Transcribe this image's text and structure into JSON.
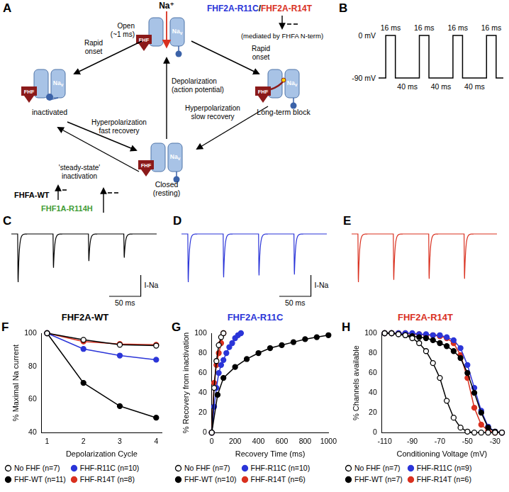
{
  "panels": {
    "A": {
      "letter": "A",
      "ion": "Na⁺",
      "channel_label": "Na",
      "channel_subscript": "v",
      "fhf_label": "FHF",
      "states": {
        "open": [
          "Open",
          "(~1 ms)"
        ],
        "inactivated": "inactivated",
        "long_term": "Long-term block",
        "closed": [
          "Closed",
          "(resting)"
        ]
      },
      "transitions": {
        "rapid_onset": [
          "Rapid",
          "onset"
        ],
        "fast_recovery": [
          "Hyperpolarization",
          "fast recovery"
        ],
        "slow_recovery": [
          "Hyperpolarization",
          "slow recovery"
        ],
        "depolarization": [
          "Depolarization",
          "(action potential)"
        ],
        "steady_state": [
          "'steady-state'",
          "inactivation"
        ]
      },
      "modulators": {
        "mutants": [
          {
            "text": "FHF2A-R11C",
            "color": "#2b35d8"
          },
          {
            "text": "FHF2A-R14T",
            "color": "#d9301f"
          }
        ],
        "separator": "/",
        "mutant_note": "(mediated by FHFA N-term)",
        "wt": {
          "text": "FHFA-WT",
          "color": "#000000"
        },
        "r114h": {
          "text": "FHF1A-R114H",
          "color": "#3f9c35"
        }
      }
    },
    "B": {
      "letter": "B",
      "levels": [
        {
          "value": 0,
          "label": "0 mV"
        },
        {
          "value": -90,
          "label": "-90 mV"
        }
      ],
      "steps": [
        {
          "level": 0,
          "duration": {
            "value": 16,
            "label": "16 ms"
          }
        },
        {
          "level": -90,
          "duration": {
            "value": 40,
            "label": "40 ms"
          }
        },
        {
          "level": 0,
          "duration": {
            "value": 16,
            "label": "16 ms"
          }
        },
        {
          "level": -90,
          "duration": {
            "value": 40,
            "label": "40 ms"
          }
        },
        {
          "level": 0,
          "duration": {
            "value": 16,
            "label": "16 ms"
          }
        },
        {
          "level": -90,
          "duration": {
            "value": 40,
            "label": "40 ms"
          }
        },
        {
          "level": 0,
          "duration": {
            "value": 16,
            "label": "16 ms"
          }
        }
      ]
    },
    "traces": [
      {
        "letter": "C",
        "label": "FHF2A-WT",
        "color": "#000000",
        "relative_peaks": [
          1.0,
          0.7,
          0.56,
          0.49
        ],
        "scale_bar": {
          "time": {
            "value": 50,
            "label": "50 ms"
          },
          "current_label": "I-Na"
        }
      },
      {
        "letter": "D",
        "label": "FHF2A-R11C",
        "color": "#2b35d8",
        "relative_peaks": [
          1.0,
          0.9,
          0.86,
          0.84
        ],
        "scale_bar": {
          "time": {
            "value": 50,
            "label": "50 ms"
          },
          "current_label": "I-Na"
        }
      },
      {
        "letter": "E",
        "label": "FHF2A-R14T",
        "color": "#d9301f",
        "relative_peaks": [
          1.0,
          0.95,
          0.93,
          0.93
        ]
      }
    ]
  },
  "chart_data": [
    {
      "panel": "F",
      "type": "line",
      "x_label": "Depolarization Cycle",
      "y_label": "% Maximal Na current",
      "x": [
        1,
        2,
        3,
        4
      ],
      "xlim": [
        0.85,
        4.15
      ],
      "xticks": [
        1,
        2,
        3,
        4
      ],
      "ylim": [
        40,
        100
      ],
      "yticks": [
        40,
        60,
        80,
        100
      ],
      "grid": false,
      "legend": "bottom",
      "series": [
        {
          "name": "No FHF (n=7)",
          "color": "#000000",
          "marker": "open_circle",
          "values": [
            100,
            96,
            93,
            92.5
          ]
        },
        {
          "name": "FHF-WT (n=11)",
          "color": "#000000",
          "marker": "circle",
          "values": [
            100,
            70,
            56,
            49
          ]
        },
        {
          "name": "FHF-R11C (n=10)",
          "color": "#2b35d8",
          "marker": "circle",
          "values": [
            100,
            90.5,
            86.5,
            84
          ]
        },
        {
          "name": "FHF-R14T (n=8)",
          "color": "#d9301f",
          "marker": "circle",
          "values": [
            100,
            95,
            93.5,
            93
          ]
        }
      ]
    },
    {
      "panel": "G",
      "type": "line",
      "x_label": "Recovery Time (ms)",
      "y_label": "% Recovery from inactivation",
      "xlim": [
        0,
        1000
      ],
      "xticks": [
        0,
        200,
        400,
        600,
        800,
        1000
      ],
      "ylim": [
        0,
        100
      ],
      "yticks": [
        0,
        20,
        40,
        60,
        80,
        100
      ],
      "grid": false,
      "legend": "bottom",
      "series": [
        {
          "name": "No FHF (n=7)",
          "color": "#000000",
          "marker": "open_circle",
          "x": [
            0,
            20,
            40,
            60,
            80,
            100
          ],
          "values": [
            0,
            45,
            72,
            88,
            96,
            100
          ]
        },
        {
          "name": "FHF-WT (n=10)",
          "color": "#000000",
          "marker": "circle",
          "x": [
            0,
            50,
            100,
            200,
            300,
            400,
            500,
            600,
            700,
            800,
            900,
            1000
          ],
          "values": [
            0,
            38,
            55,
            66,
            74,
            80,
            85,
            88,
            91,
            94,
            96,
            98
          ]
        },
        {
          "name": "FHF-R11C (n=10)",
          "color": "#2b35d8",
          "marker": "circle",
          "x": [
            0,
            20,
            40,
            60,
            80,
            100,
            125,
            150,
            175,
            200,
            225,
            250
          ],
          "values": [
            0,
            26,
            45,
            60,
            68,
            73,
            80,
            86,
            90,
            95,
            98,
            100
          ]
        },
        {
          "name": "FHF-R14T (n=6)",
          "color": "#d9301f",
          "marker": "circle",
          "x": [
            0,
            20,
            40,
            60,
            80,
            100
          ],
          "values": [
            0,
            50,
            68,
            80,
            90,
            100
          ]
        }
      ]
    },
    {
      "panel": "H",
      "type": "line",
      "x_label": "Conditioning Voltage (mV)",
      "y_label": "% Channels available",
      "x": [
        -110,
        -105,
        -100,
        -95,
        -90,
        -85,
        -80,
        -75,
        -70,
        -65,
        -60,
        -55,
        -50,
        -45,
        -40,
        -35,
        -30,
        -25
      ],
      "xlim": [
        -112,
        -25
      ],
      "xticks": [
        -110,
        -90,
        -70,
        -50,
        -30
      ],
      "ylim": [
        0,
        100
      ],
      "yticks": [
        0,
        20,
        40,
        60,
        80,
        100
      ],
      "grid": false,
      "legend": "bottom",
      "series": [
        {
          "name": "No FHF (n=7)",
          "color": "#000000",
          "marker": "open_circle",
          "values": [
            100,
            100,
            99,
            98,
            95,
            90,
            82,
            70,
            55,
            32,
            15,
            5,
            1,
            0,
            0,
            0,
            0,
            0
          ]
        },
        {
          "name": "FHF-WT (n=7)",
          "color": "#000000",
          "marker": "circle",
          "values": [
            100,
            100,
            99,
            98,
            97,
            96,
            95,
            93,
            90,
            87,
            82,
            75,
            60,
            40,
            20,
            5,
            1,
            0
          ]
        },
        {
          "name": "FHF-R11C (n=9)",
          "color": "#2b35d8",
          "marker": "circle",
          "values": [
            100,
            100,
            100,
            100,
            100,
            99,
            99,
            98,
            98,
            96,
            93,
            85,
            68,
            45,
            22,
            6,
            1,
            0
          ]
        },
        {
          "name": "FHF-R14T (n=6)",
          "color": "#d9301f",
          "marker": "circle",
          "values": [
            100,
            100,
            100,
            100,
            99,
            99,
            98,
            98,
            97,
            95,
            90,
            78,
            55,
            25,
            8,
            2,
            0,
            0
          ]
        }
      ]
    }
  ]
}
